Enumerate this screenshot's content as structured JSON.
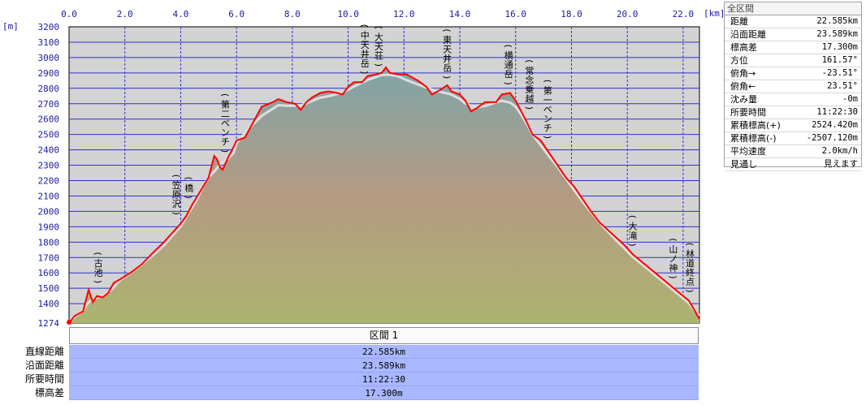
{
  "chart_data": {
    "type": "area",
    "x_unit": "[km]",
    "y_unit": "[m]",
    "xlim": [
      0,
      22.585
    ],
    "ylim": [
      1274,
      3200
    ],
    "x_ticks": [
      "0.0",
      "2.0",
      "4.0",
      "6.0",
      "8.0",
      "10.0",
      "12.0",
      "14.0",
      "16.0",
      "18.0",
      "20.0",
      "22.0"
    ],
    "y_ticks": [
      "3200",
      "3100",
      "3000",
      "2900",
      "2800",
      "2700",
      "2600",
      "2500",
      "2400",
      "2300",
      "2200",
      "2100",
      "2000",
      "1900",
      "1800",
      "1700",
      "1600",
      "1500",
      "1400",
      "1274"
    ],
    "series": [
      {
        "line_color": "#ff0000",
        "points": [
          [
            0,
            1274
          ],
          [
            0.2,
            1320
          ],
          [
            0.5,
            1350
          ],
          [
            0.6,
            1420
          ],
          [
            0.7,
            1490
          ],
          [
            0.85,
            1410
          ],
          [
            1.0,
            1450
          ],
          [
            1.2,
            1440
          ],
          [
            1.4,
            1470
          ],
          [
            1.6,
            1535
          ],
          [
            1.8,
            1555
          ],
          [
            2.2,
            1600
          ],
          [
            2.6,
            1655
          ],
          [
            3.0,
            1730
          ],
          [
            3.4,
            1800
          ],
          [
            3.7,
            1860
          ],
          [
            4.0,
            1920
          ],
          [
            4.2,
            1970
          ],
          [
            4.4,
            2040
          ],
          [
            4.6,
            2100
          ],
          [
            4.8,
            2160
          ],
          [
            5.0,
            2220
          ],
          [
            5.2,
            2360
          ],
          [
            5.3,
            2340
          ],
          [
            5.4,
            2290
          ],
          [
            5.5,
            2270
          ],
          [
            5.7,
            2350
          ],
          [
            5.9,
            2420
          ],
          [
            6.0,
            2460
          ],
          [
            6.3,
            2480
          ],
          [
            6.6,
            2580
          ],
          [
            6.9,
            2680
          ],
          [
            7.3,
            2710
          ],
          [
            7.5,
            2730
          ],
          [
            7.8,
            2710
          ],
          [
            8.1,
            2700
          ],
          [
            8.3,
            2660
          ],
          [
            8.5,
            2710
          ],
          [
            8.7,
            2740
          ],
          [
            9.0,
            2770
          ],
          [
            9.3,
            2780
          ],
          [
            9.6,
            2770
          ],
          [
            9.8,
            2760
          ],
          [
            10.0,
            2810
          ],
          [
            10.2,
            2840
          ],
          [
            10.5,
            2840
          ],
          [
            10.7,
            2880
          ],
          [
            11.0,
            2890
          ],
          [
            11.2,
            2900
          ],
          [
            11.35,
            2935
          ],
          [
            11.5,
            2900
          ],
          [
            11.8,
            2890
          ],
          [
            12.1,
            2890
          ],
          [
            12.5,
            2850
          ],
          [
            12.8,
            2810
          ],
          [
            13.0,
            2760
          ],
          [
            13.3,
            2790
          ],
          [
            13.55,
            2820
          ],
          [
            13.7,
            2780
          ],
          [
            14.0,
            2760
          ],
          [
            14.2,
            2720
          ],
          [
            14.4,
            2650
          ],
          [
            14.6,
            2670
          ],
          [
            14.9,
            2710
          ],
          [
            15.3,
            2710
          ],
          [
            15.5,
            2760
          ],
          [
            15.8,
            2770
          ],
          [
            16.0,
            2720
          ],
          [
            16.2,
            2650
          ],
          [
            16.4,
            2580
          ],
          [
            16.6,
            2500
          ],
          [
            16.9,
            2460
          ],
          [
            17.2,
            2380
          ],
          [
            17.5,
            2300
          ],
          [
            17.8,
            2220
          ],
          [
            18.1,
            2160
          ],
          [
            18.4,
            2080
          ],
          [
            18.7,
            2000
          ],
          [
            19.0,
            1930
          ],
          [
            19.3,
            1880
          ],
          [
            19.6,
            1830
          ],
          [
            19.9,
            1780
          ],
          [
            20.2,
            1720
          ],
          [
            20.6,
            1660
          ],
          [
            21.0,
            1600
          ],
          [
            21.4,
            1540
          ],
          [
            21.8,
            1480
          ],
          [
            22.2,
            1420
          ],
          [
            22.4,
            1360
          ],
          [
            22.585,
            1300
          ]
        ]
      }
    ],
    "annotations": [
      {
        "text": "(古池)",
        "x": 1.05,
        "y": 1490
      },
      {
        "text": "(笠原沢)",
        "x": 3.85,
        "y": 1935
      },
      {
        "text": "(橋)",
        "x": 4.3,
        "y": 2040
      },
      {
        "text": "(第二ベンチ)",
        "x": 5.6,
        "y": 2340
      },
      {
        "text": "(中天井岳)",
        "x": 10.6,
        "y": 2850
      },
      {
        "text": "(大天荘)",
        "x": 11.1,
        "y": 2900
      },
      {
        "text": "(東天井岳)",
        "x": 13.55,
        "y": 2820
      },
      {
        "text": "(横通岳)",
        "x": 15.75,
        "y": 2780
      },
      {
        "text": "(常念乗越)",
        "x": 16.5,
        "y": 2620
      },
      {
        "text": "(第一ベンチ)",
        "x": 17.15,
        "y": 2430
      },
      {
        "text": "(大滝)",
        "x": 20.2,
        "y": 1730
      },
      {
        "text": "(山ノ神)",
        "x": 21.65,
        "y": 1520
      },
      {
        "text": "(林道終点)",
        "x": 22.25,
        "y": 1430
      }
    ]
  },
  "panel": {
    "title": "全区間",
    "rows": [
      {
        "label": "距離",
        "value": "22.585km"
      },
      {
        "label": "沿面距離",
        "value": "23.589km"
      },
      {
        "label": "標高差",
        "value": "17.300m"
      },
      {
        "label": "方位",
        "value": "161.57°"
      },
      {
        "label": "俯角→",
        "value": "-23.51°"
      },
      {
        "label": "俯角←",
        "value": "23.51°"
      },
      {
        "label": "沈み量",
        "value": "-0m"
      },
      {
        "label": "所要時間",
        "value": "11:22:30"
      },
      {
        "label": "累積標高(+)",
        "value": "2524.420m"
      },
      {
        "label": "累積標高(-)",
        "value": "-2507.120m"
      },
      {
        "label": "平均速度",
        "value": "2.0km/h"
      },
      {
        "label": "見通し",
        "value": "見えます"
      }
    ]
  },
  "section": {
    "header": "区間 1",
    "rows": [
      {
        "label": "直線距離",
        "value": "22.585km"
      },
      {
        "label": "沿面距離",
        "value": "23.589km"
      },
      {
        "label": "所要時間",
        "value": "11:22:30"
      },
      {
        "label": "標高差",
        "value": "17.300m"
      }
    ]
  }
}
